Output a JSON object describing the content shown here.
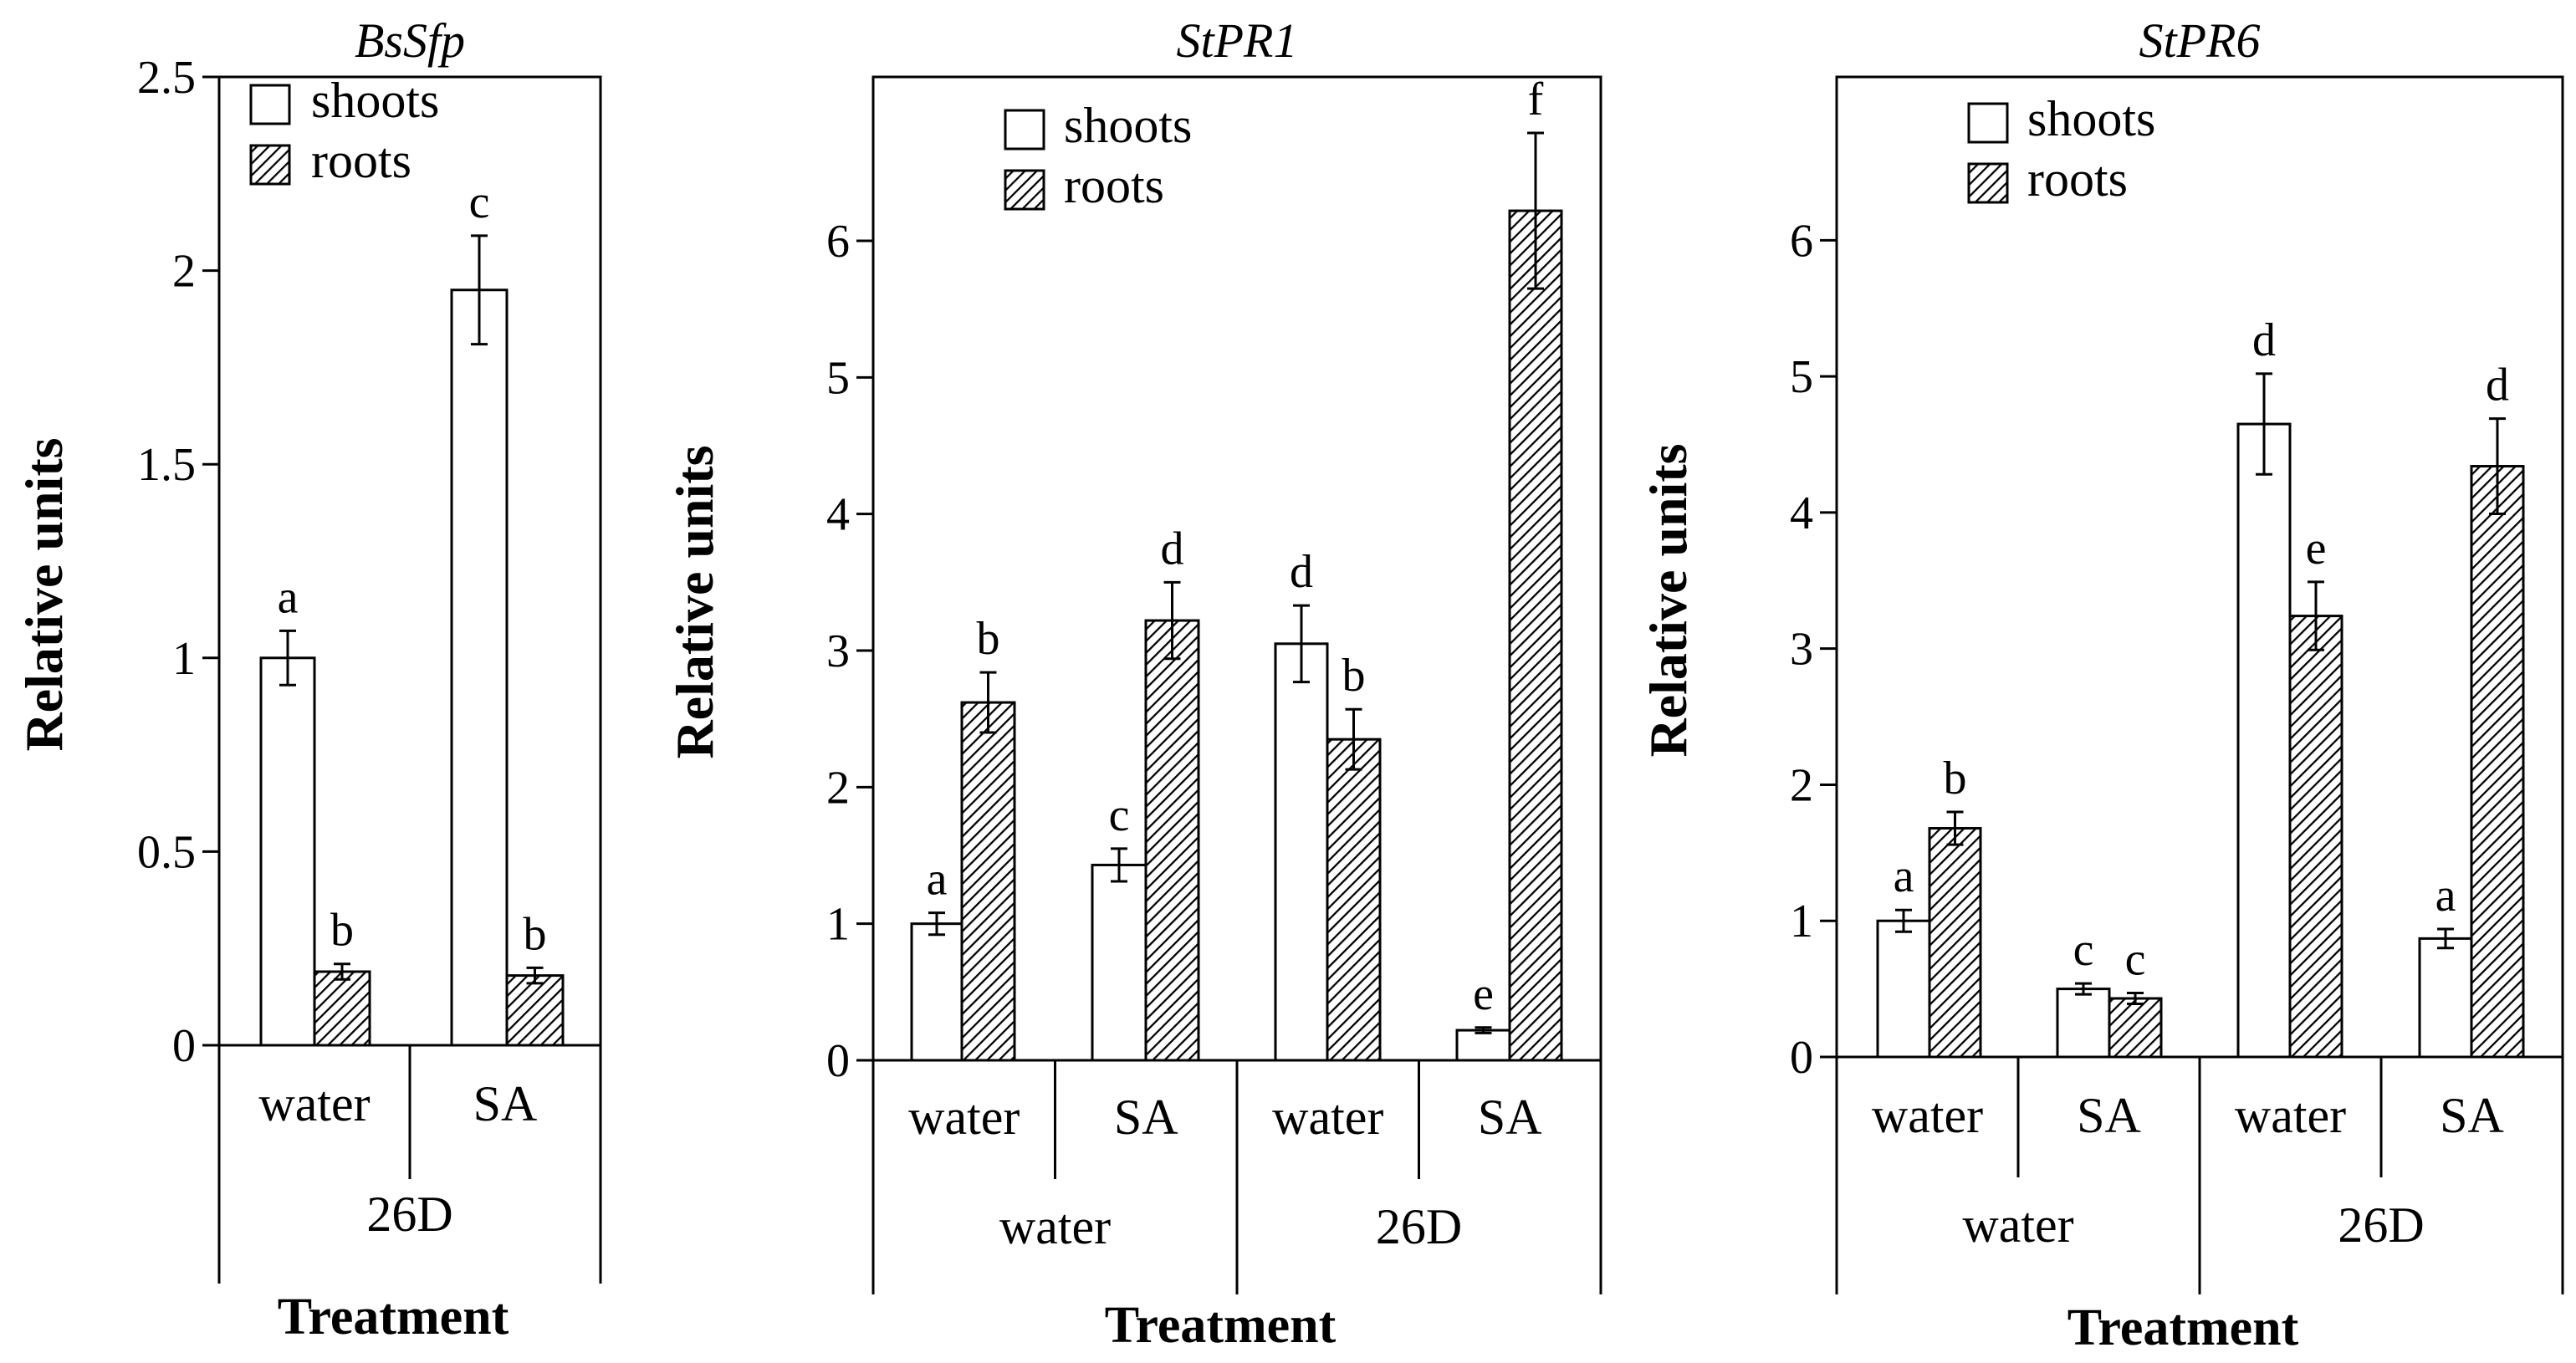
{
  "chart_data": [
    {
      "type": "bar",
      "title": "BsSfp",
      "xlabel": "Treatment",
      "ylabel": "Relative units",
      "ylim": [
        0,
        2.5
      ],
      "yticks": [
        0,
        0.5,
        1,
        1.5,
        2,
        2.5
      ],
      "ytick_labels": [
        "0",
        "0.5",
        "1",
        "1.5",
        "2",
        "2.5"
      ],
      "categories": [
        "water",
        "SA"
      ],
      "groups": [
        {
          "label": "26D",
          "span": 2
        }
      ],
      "legend": [
        "shoots",
        "roots"
      ],
      "legend_position": "top-left",
      "series": [
        {
          "name": "shoots",
          "values": [
            1.0,
            1.95
          ],
          "errors": [
            0.07,
            0.14
          ],
          "letters": [
            "a",
            "c"
          ]
        },
        {
          "name": "roots",
          "values": [
            0.19,
            0.18
          ],
          "errors": [
            0.02,
            0.02
          ],
          "letters": [
            "b",
            "b"
          ]
        }
      ]
    },
    {
      "type": "bar",
      "title": "StPR1",
      "xlabel": "Treatment",
      "ylabel": "Relative units",
      "ylim": [
        0,
        7.2
      ],
      "yticks": [
        0,
        1,
        2,
        3,
        4,
        5,
        6
      ],
      "ytick_labels": [
        "0",
        "1",
        "2",
        "3",
        "4",
        "5",
        "6"
      ],
      "categories": [
        "water",
        "SA",
        "water",
        "SA"
      ],
      "groups": [
        {
          "label": "water",
          "span": 2
        },
        {
          "label": "26D",
          "span": 2
        }
      ],
      "legend": [
        "shoots",
        "roots"
      ],
      "legend_position": "top-left",
      "series": [
        {
          "name": "shoots",
          "values": [
            1.0,
            1.43,
            3.05,
            0.22
          ],
          "errors": [
            0.08,
            0.12,
            0.28,
            0.02
          ],
          "letters": [
            "a",
            "c",
            "d",
            "e"
          ]
        },
        {
          "name": "roots",
          "values": [
            2.62,
            3.22,
            2.35,
            6.22
          ],
          "errors": [
            0.22,
            0.28,
            0.22,
            0.57
          ],
          "letters": [
            "b",
            "d",
            "b",
            "f"
          ]
        }
      ]
    },
    {
      "type": "bar",
      "title": "StPR6",
      "xlabel": "Treatment",
      "ylabel": "Relative units",
      "ylim": [
        0,
        7.2
      ],
      "yticks": [
        0,
        1,
        2,
        3,
        4,
        5,
        6
      ],
      "ytick_labels": [
        "0",
        "1",
        "2",
        "3",
        "4",
        "5",
        "6"
      ],
      "categories": [
        "water",
        "SA",
        "water",
        "SA"
      ],
      "groups": [
        {
          "label": "water",
          "span": 2
        },
        {
          "label": "26D",
          "span": 2
        }
      ],
      "legend": [
        "shoots",
        "roots"
      ],
      "legend_position": "top-left",
      "series": [
        {
          "name": "shoots",
          "values": [
            1.0,
            0.5,
            4.65,
            0.87
          ],
          "errors": [
            0.08,
            0.04,
            0.37,
            0.07
          ],
          "letters": [
            "a",
            "c",
            "d",
            "a"
          ]
        },
        {
          "name": "roots",
          "values": [
            1.68,
            0.43,
            3.24,
            4.34
          ],
          "errors": [
            0.12,
            0.04,
            0.25,
            0.35
          ],
          "letters": [
            "b",
            "c",
            "e",
            "d"
          ]
        }
      ]
    }
  ]
}
